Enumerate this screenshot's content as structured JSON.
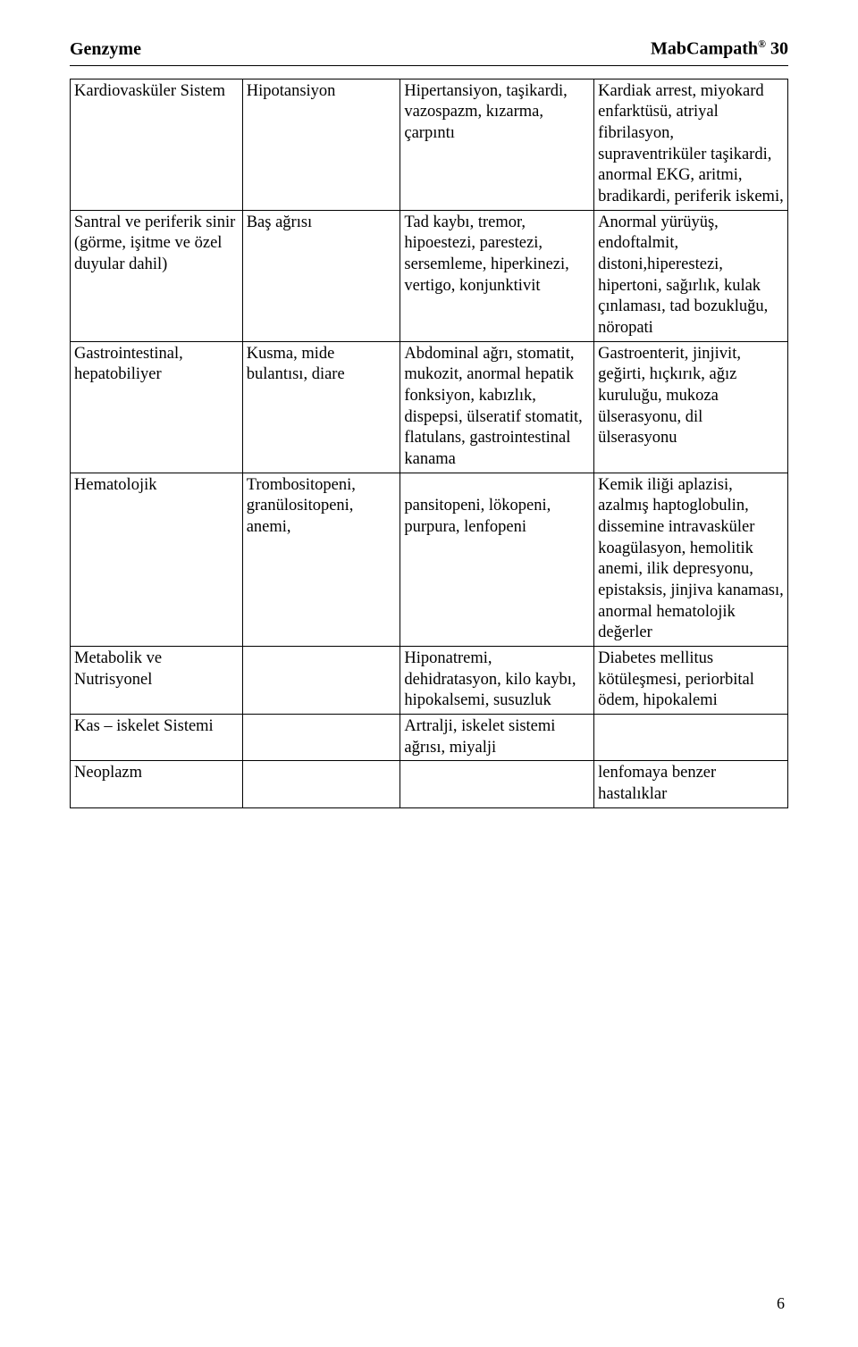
{
  "header": {
    "left": "Genzyme",
    "right_brand": "MabCampath",
    "right_reg": "®",
    "right_num": " 30"
  },
  "page_number": "6",
  "rows": [
    {
      "c1": "Kardiovasküler Sistem",
      "c2": "Hipotansiyon",
      "c3": "Hipertansiyon, taşikardi, vazospazm, kızarma, çarpıntı",
      "c4": "Kardiak arrest, miyokard enfarktüsü, atriyal fibrilasyon, supraventriküler taşikardi, anormal EKG, aritmi, bradikardi, periferik iskemi,"
    },
    {
      "c1": "Santral ve periferik sinir (görme, işitme ve özel duyular dahil)",
      "c2": "Baş ağrısı",
      "c3": "Tad kaybı, tremor, hipoestezi, parestezi, sersemleme, hiperkinezi, vertigo, konjunktivit",
      "c4": "Anormal yürüyüş, endoftalmit, distoni,hiperestezi, hipertoni, sağırlık, kulak çınlaması, tad bozukluğu, nöropati"
    },
    {
      "c1": "Gastrointestinal, hepatobiliyer",
      "c2": "Kusma, mide bulantısı, diare",
      "c3": "Abdominal ağrı, stomatit, mukozit, anormal hepatik fonksiyon, kabızlık, dispepsi, ülseratif stomatit, flatulans, gastrointestinal kanama",
      "c4": "Gastroenterit, jinjivit, geğirti, hıçkırık, ağız kuruluğu, mukoza ülserasyonu, dil ülserasyonu"
    },
    {
      "c1": "Hematolojik",
      "c2": "Trombositopeni, granülositopeni, anemi,",
      "c3": "\npansitopeni, lökopeni, purpura, lenfopeni",
      "c4": "Kemik iliği aplazisi, azalmış haptoglobulin, dissemine intravasküler koagülasyon, hemolitik anemi, ilik depresyonu, epistaksis, jinjiva kanaması, anormal hematolojik değerler"
    },
    {
      "c1": "Metabolik ve Nutrisyonel",
      "c2": "",
      "c3": "Hiponatremi, dehidratasyon, kilo kaybı, hipokalsemi, susuzluk",
      "c4": "Diabetes mellitus kötüleşmesi, periorbital ödem, hipokalemi"
    },
    {
      "c1": "Kas – iskelet Sistemi",
      "c2": "",
      "c3": "Artralji, iskelet sistemi ağrısı, miyalji",
      "c4": ""
    },
    {
      "c1": "Neoplazm",
      "c2": "",
      "c3": "",
      "c4": "lenfomaya benzer hastalıklar"
    }
  ]
}
